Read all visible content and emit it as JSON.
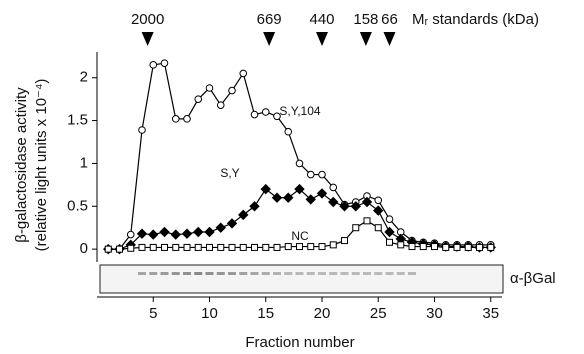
{
  "chart_data": {
    "type": "line",
    "y_label": [
      "β-galactosidase activity",
      "(relative light units x 10⁻⁴)"
    ],
    "x_label": "Fraction number",
    "standards_label": "Mᵣ standards (kDa)",
    "standards": [
      {
        "label": "2000",
        "fraction": 4.5
      },
      {
        "label": "669",
        "fraction": 15.3
      },
      {
        "label": "440",
        "fraction": 20
      },
      {
        "label": "158",
        "fraction": 23.9
      },
      {
        "label": "66",
        "fraction": 26
      }
    ],
    "blot_label": "α-βGal",
    "x": [
      1,
      2,
      3,
      4,
      5,
      6,
      7,
      8,
      9,
      10,
      11,
      12,
      13,
      14,
      15,
      16,
      17,
      18,
      19,
      20,
      21,
      22,
      23,
      24,
      25,
      26,
      27,
      28,
      29,
      30,
      31,
      32,
      33,
      34,
      35
    ],
    "series": [
      {
        "name": "S,Y,104",
        "marker": "circle",
        "color": "#000",
        "values": [
          0,
          0,
          0.17,
          1.39,
          2.15,
          2.17,
          1.52,
          1.52,
          1.75,
          1.88,
          1.68,
          1.85,
          2.05,
          1.57,
          1.6,
          1.55,
          1.37,
          1.0,
          0.87,
          0.87,
          0.72,
          0.52,
          0.55,
          0.62,
          0.57,
          0.35,
          0.2,
          0.1,
          0.08,
          0.07,
          0.05,
          0.05,
          0.05,
          0.05,
          0.05
        ]
      },
      {
        "name": "S,Y",
        "marker": "diamond",
        "color": "#000",
        "values": [
          0,
          0,
          0.05,
          0.18,
          0.17,
          0.2,
          0.17,
          0.18,
          0.2,
          0.2,
          0.25,
          0.3,
          0.4,
          0.5,
          0.7,
          0.6,
          0.6,
          0.7,
          0.58,
          0.65,
          0.55,
          0.5,
          0.5,
          0.55,
          0.45,
          0.2,
          0.12,
          0.08,
          0.06,
          0.05,
          0.03,
          0.03,
          0.03,
          0.02,
          0.02
        ]
      },
      {
        "name": "NC",
        "marker": "square",
        "color": "#000",
        "values": [
          0,
          0,
          0.01,
          0.02,
          0.02,
          0.02,
          0.02,
          0.02,
          0.02,
          0.02,
          0.02,
          0.02,
          0.02,
          0.02,
          0.02,
          0.02,
          0.03,
          0.03,
          0.03,
          0.03,
          0.05,
          0.1,
          0.25,
          0.33,
          0.25,
          0.08,
          0.05,
          0.03,
          0.03,
          0.03,
          0.02,
          0.02,
          0.02,
          0.02,
          0.02
        ]
      }
    ],
    "xlim": [
      0,
      36
    ],
    "ylim": [
      -0.15,
      2.3
    ],
    "xticks": [
      5,
      10,
      15,
      20,
      25,
      30,
      35
    ],
    "yticks": [
      0,
      0.5,
      1,
      1.5,
      2
    ]
  }
}
